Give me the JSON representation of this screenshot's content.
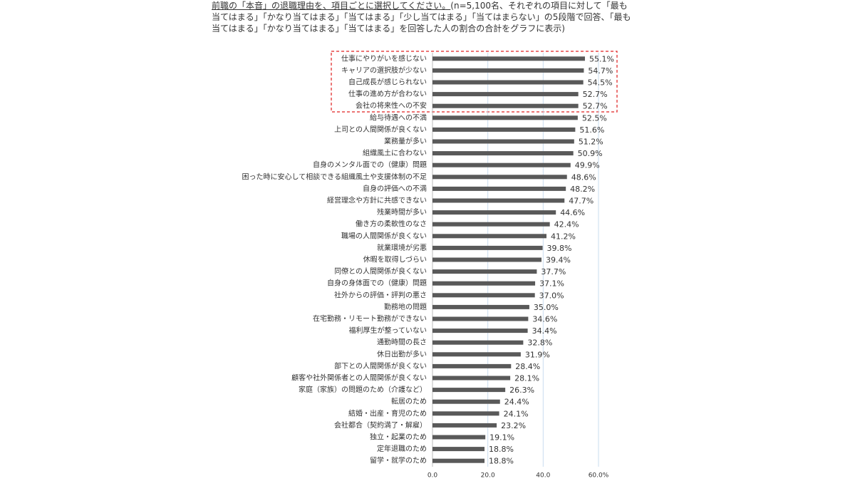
{
  "chart_data": {
    "type": "hbar",
    "title": "前職の「本音」の退職理由を、項目ごとに選択してください。",
    "subtitle": "(n=5,100名、それぞれの項目に対して「最も当てはまる」「かなり当てはまる」「当てはまる」「少し当てはまる」「当てはまらない」の5段階で回答、「最も当てはまる」「かなり当てはまる」「当てはまる」を回答した人の割合の合計をグラフに表示)",
    "categories": [
      "仕事にやりがいを感じない",
      "キャリアの選択肢が少ない",
      "自己成長が感じられない",
      "仕事の進め方が合わない",
      "会社の将来性への不安",
      "給与待遇への不満",
      "上司との人間関係が良くない",
      "業務量が多い",
      "組織風土に合わない",
      "自身のメンタル面での（健康）問題",
      "困った時に安心して相談できる組織風土や支援体制の不足",
      "自身の評価への不満",
      "経営理念や方針に共感できない",
      "残業時間が多い",
      "働き方の柔軟性のなさ",
      "職場の人間関係が良くない",
      "就業環境が劣悪",
      "休暇を取得しづらい",
      "同僚との人間関係が良くない",
      "自身の身体面での（健康）問題",
      "社外からの評価・評判の悪さ",
      "勤務地の問題",
      "在宅勤務・リモート勤務ができない",
      "福利厚生が整っていない",
      "通勤時間の長さ",
      "休日出勤が多い",
      "部下との人間関係が良くない",
      "顧客や社外関係者との人間関係が良くない",
      "家庭（家族）の問題のため（介護など）",
      "転居のため",
      "結婚・出産・育児のため",
      "会社都合（契約満了・解雇）",
      "独立・起業のため",
      "定年退職のため",
      "留学・就学のため"
    ],
    "values": [
      55.1,
      54.7,
      54.5,
      52.7,
      52.7,
      52.5,
      51.6,
      51.2,
      50.9,
      49.9,
      48.6,
      48.2,
      47.7,
      44.6,
      42.4,
      41.2,
      39.8,
      39.4,
      37.7,
      37.1,
      37.0,
      35.0,
      34.6,
      34.4,
      32.8,
      31.9,
      28.4,
      28.1,
      26.3,
      24.4,
      24.1,
      23.2,
      19.1,
      18.8,
      18.8
    ],
    "value_labels": [
      "55.1%",
      "54.7%",
      "54.5%",
      "52.7%",
      "52.7%",
      "52.5%",
      "51.6%",
      "51.2%",
      "50.9%",
      "49.9%",
      "48.6%",
      "48.2%",
      "47.7%",
      "44.6%",
      "42.4%",
      "41.2%",
      "39.8%",
      "39.4%",
      "37.7%",
      "37.1%",
      "37.0%",
      "35.0%",
      "34.6%",
      "34.4%",
      "32.8%",
      "31.9%",
      "28.4%",
      "28.1%",
      "26.3%",
      "24.4%",
      "24.1%",
      "23.2%",
      "19.1%",
      "18.8%",
      "18.8%"
    ],
    "color": "#595959",
    "xlim": [
      0,
      60
    ],
    "xticks": [
      {
        "value": 0,
        "label": "0.0"
      },
      {
        "value": 20,
        "label": "20.0"
      },
      {
        "value": 40,
        "label": "40.0"
      },
      {
        "value": 60,
        "label": "60.0%"
      }
    ],
    "grid": true
  }
}
